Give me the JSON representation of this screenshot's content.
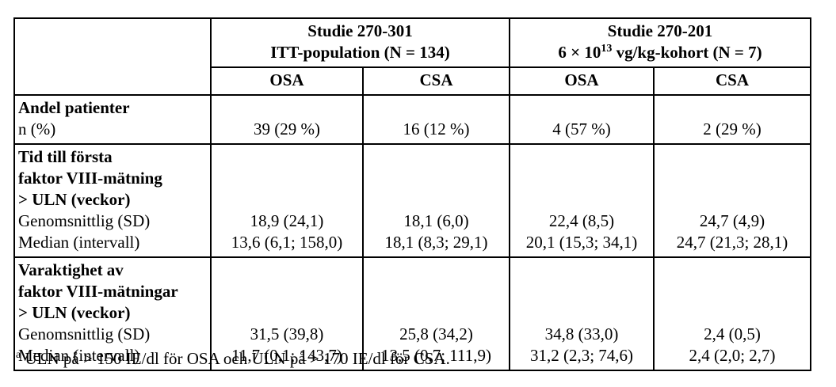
{
  "header": {
    "group1_line1": "Studie 270-301",
    "group1_line2": "ITT-population (N = 134)",
    "group2_line1": "Studie 270-201",
    "group2_line2_pre": "6 × 10",
    "group2_line2_sup": "13",
    "group2_line2_post": " vg/kg-kohort (N = 7)",
    "sub": [
      "OSA",
      "CSA",
      "OSA",
      "CSA"
    ]
  },
  "blocks": [
    {
      "label_bold": [
        "Andel patienter"
      ],
      "label_regular": [
        "n (%)"
      ],
      "rows": [
        [
          "39 (29 %)",
          "16 (12 %)",
          "4 (57 %)",
          "2 (29 %)"
        ]
      ]
    },
    {
      "label_bold": [
        "Tid till första",
        "faktor VIII-mätning",
        "> ULN (veckor)"
      ],
      "label_regular": [
        "Genomsnittlig (SD)",
        "Median (intervall)"
      ],
      "rows": [
        [
          "18,9 (24,1)",
          "18,1 (6,0)",
          "22,4 (8,5)",
          "24,7 (4,9)"
        ],
        [
          "13,6 (6,1; 158,0)",
          "18,1 (8,3; 29,1)",
          "20,1 (15,3; 34,1)",
          "24,7 (21,3; 28,1)"
        ]
      ]
    },
    {
      "label_bold": [
        "Varaktighet av",
        "faktor VIII-mätningar",
        "> ULN (veckor)"
      ],
      "label_regular": [
        "Genomsnittlig (SD)",
        "Median (intervall)"
      ],
      "rows": [
        [
          "31,5 (39,8)",
          "25,8 (34,2)",
          "34,8 (33,0)",
          "2,4 (0,5)"
        ],
        [
          "11,7 (0,1; 143,7)",
          "13,5 (0,7; 111,9)",
          "31,2 (2,3; 74,6)",
          "2,4 (2,0; 2,7)"
        ]
      ]
    }
  ],
  "footnote": {
    "marker": "a",
    "text": " ULN på > 150 IE/dl för OSA och ULN på > 170 IE/dl för CSA."
  }
}
